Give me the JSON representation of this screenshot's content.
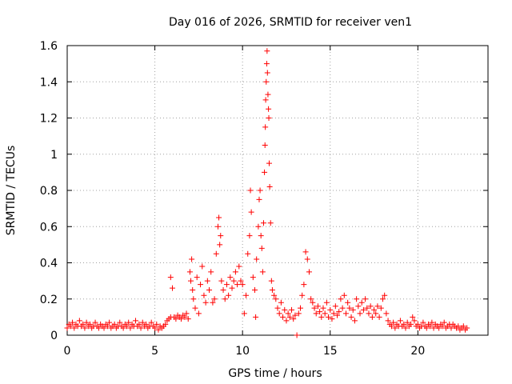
{
  "chart_data": {
    "type": "scatter",
    "title": "Day 016 of 2026, SRMTID for receiver ven1",
    "xlabel": "GPS time / hours",
    "ylabel": "SRMTID / TECUs",
    "xlim": [
      0,
      24
    ],
    "ylim": [
      0,
      1.6
    ],
    "xticks": [
      0,
      5,
      10,
      15,
      20
    ],
    "xtick_labels": [
      "0",
      "5",
      "10",
      "15",
      "20"
    ],
    "yticks": [
      0,
      0.2,
      0.4,
      0.6,
      0.8,
      1.0,
      1.2,
      1.4,
      1.6
    ],
    "ytick_labels": [
      "0",
      "0.2",
      "0.4",
      "0.6",
      "0.8",
      "1",
      "1.2",
      "1.4",
      "1.6"
    ],
    "grid": true,
    "marker": "plus",
    "color": "#ff0000",
    "series": [
      {
        "name": "SRMTID",
        "points": [
          [
            0.0,
            0.04
          ],
          [
            0.1,
            0.06
          ],
          [
            0.2,
            0.05
          ],
          [
            0.3,
            0.07
          ],
          [
            0.4,
            0.04
          ],
          [
            0.5,
            0.06
          ],
          [
            0.6,
            0.05
          ],
          [
            0.7,
            0.08
          ],
          [
            0.8,
            0.05
          ],
          [
            0.9,
            0.06
          ],
          [
            1.0,
            0.04
          ],
          [
            1.1,
            0.07
          ],
          [
            1.2,
            0.05
          ],
          [
            1.3,
            0.06
          ],
          [
            1.4,
            0.04
          ],
          [
            1.5,
            0.05
          ],
          [
            1.6,
            0.07
          ],
          [
            1.7,
            0.05
          ],
          [
            1.8,
            0.04
          ],
          [
            1.9,
            0.06
          ],
          [
            2.0,
            0.05
          ],
          [
            2.1,
            0.04
          ],
          [
            2.2,
            0.06
          ],
          [
            2.3,
            0.05
          ],
          [
            2.4,
            0.07
          ],
          [
            2.5,
            0.04
          ],
          [
            2.6,
            0.05
          ],
          [
            2.7,
            0.06
          ],
          [
            2.8,
            0.04
          ],
          [
            2.9,
            0.05
          ],
          [
            3.0,
            0.07
          ],
          [
            3.1,
            0.05
          ],
          [
            3.2,
            0.04
          ],
          [
            3.3,
            0.06
          ],
          [
            3.4,
            0.05
          ],
          [
            3.5,
            0.07
          ],
          [
            3.6,
            0.04
          ],
          [
            3.7,
            0.06
          ],
          [
            3.8,
            0.05
          ],
          [
            3.9,
            0.08
          ],
          [
            4.0,
            0.05
          ],
          [
            4.1,
            0.06
          ],
          [
            4.2,
            0.04
          ],
          [
            4.3,
            0.07
          ],
          [
            4.4,
            0.05
          ],
          [
            4.5,
            0.06
          ],
          [
            4.6,
            0.04
          ],
          [
            4.7,
            0.05
          ],
          [
            4.8,
            0.07
          ],
          [
            4.9,
            0.05
          ],
          [
            5.0,
            0.04
          ],
          [
            5.1,
            0.06
          ],
          [
            5.2,
            0.03
          ],
          [
            5.3,
            0.05
          ],
          [
            5.4,
            0.04
          ],
          [
            5.5,
            0.05
          ],
          [
            5.6,
            0.06
          ],
          [
            5.7,
            0.08
          ],
          [
            5.8,
            0.09
          ],
          [
            5.9,
            0.1
          ],
          [
            6.0,
            0.26
          ],
          [
            5.9,
            0.32
          ],
          [
            6.1,
            0.1
          ],
          [
            6.2,
            0.09
          ],
          [
            6.3,
            0.11
          ],
          [
            6.4,
            0.1
          ],
          [
            6.5,
            0.09
          ],
          [
            6.6,
            0.11
          ],
          [
            6.7,
            0.1
          ],
          [
            6.8,
            0.12
          ],
          [
            6.9,
            0.09
          ],
          [
            7.0,
            0.35
          ],
          [
            7.05,
            0.3
          ],
          [
            7.1,
            0.42
          ],
          [
            7.15,
            0.25
          ],
          [
            7.2,
            0.2
          ],
          [
            7.3,
            0.15
          ],
          [
            7.4,
            0.32
          ],
          [
            7.5,
            0.12
          ],
          [
            7.6,
            0.28
          ],
          [
            7.7,
            0.38
          ],
          [
            7.8,
            0.22
          ],
          [
            7.9,
            0.18
          ],
          [
            8.0,
            0.3
          ],
          [
            8.1,
            0.25
          ],
          [
            8.2,
            0.35
          ],
          [
            8.3,
            0.18
          ],
          [
            8.4,
            0.2
          ],
          [
            8.5,
            0.45
          ],
          [
            8.6,
            0.6
          ],
          [
            8.65,
            0.65
          ],
          [
            8.7,
            0.5
          ],
          [
            8.75,
            0.55
          ],
          [
            8.8,
            0.3
          ],
          [
            8.9,
            0.25
          ],
          [
            9.0,
            0.2
          ],
          [
            9.1,
            0.28
          ],
          [
            9.2,
            0.22
          ],
          [
            9.3,
            0.32
          ],
          [
            9.4,
            0.26
          ],
          [
            9.5,
            0.3
          ],
          [
            9.6,
            0.35
          ],
          [
            9.7,
            0.28
          ],
          [
            9.8,
            0.38
          ],
          [
            9.9,
            0.3
          ],
          [
            10.0,
            0.28
          ],
          [
            10.1,
            0.12
          ],
          [
            10.2,
            0.22
          ],
          [
            10.3,
            0.45
          ],
          [
            10.4,
            0.55
          ],
          [
            10.45,
            0.8
          ],
          [
            10.5,
            0.68
          ],
          [
            10.6,
            0.32
          ],
          [
            10.7,
            0.25
          ],
          [
            10.75,
            0.1
          ],
          [
            10.8,
            0.42
          ],
          [
            10.9,
            0.6
          ],
          [
            10.95,
            0.75
          ],
          [
            11.0,
            0.8
          ],
          [
            11.05,
            0.55
          ],
          [
            11.1,
            0.48
          ],
          [
            11.15,
            0.35
          ],
          [
            11.2,
            0.62
          ],
          [
            11.25,
            0.9
          ],
          [
            11.28,
            1.05
          ],
          [
            11.3,
            1.15
          ],
          [
            11.32,
            1.3
          ],
          [
            11.35,
            1.4
          ],
          [
            11.38,
            1.5
          ],
          [
            11.4,
            1.57
          ],
          [
            11.42,
            1.45
          ],
          [
            11.45,
            1.33
          ],
          [
            11.48,
            1.25
          ],
          [
            11.5,
            1.2
          ],
          [
            11.52,
            0.95
          ],
          [
            11.55,
            0.82
          ],
          [
            11.6,
            0.62
          ],
          [
            11.65,
            0.3
          ],
          [
            11.7,
            0.25
          ],
          [
            11.8,
            0.22
          ],
          [
            11.9,
            0.2
          ],
          [
            12.0,
            0.15
          ],
          [
            12.1,
            0.12
          ],
          [
            12.2,
            0.18
          ],
          [
            12.3,
            0.1
          ],
          [
            12.4,
            0.14
          ],
          [
            12.5,
            0.08
          ],
          [
            12.6,
            0.12
          ],
          [
            12.7,
            0.1
          ],
          [
            12.8,
            0.14
          ],
          [
            12.9,
            0.09
          ],
          [
            13.0,
            0.11
          ],
          [
            13.1,
            0.0
          ],
          [
            13.2,
            0.12
          ],
          [
            13.3,
            0.15
          ],
          [
            13.4,
            0.22
          ],
          [
            13.5,
            0.28
          ],
          [
            13.6,
            0.46
          ],
          [
            13.7,
            0.42
          ],
          [
            13.8,
            0.35
          ],
          [
            13.9,
            0.2
          ],
          [
            14.0,
            0.18
          ],
          [
            14.1,
            0.15
          ],
          [
            14.2,
            0.12
          ],
          [
            14.3,
            0.16
          ],
          [
            14.4,
            0.13
          ],
          [
            14.5,
            0.1
          ],
          [
            14.6,
            0.15
          ],
          [
            14.7,
            0.12
          ],
          [
            14.8,
            0.18
          ],
          [
            14.9,
            0.1
          ],
          [
            15.0,
            0.14
          ],
          [
            15.1,
            0.09
          ],
          [
            15.2,
            0.12
          ],
          [
            15.3,
            0.16
          ],
          [
            15.4,
            0.11
          ],
          [
            15.5,
            0.13
          ],
          [
            15.6,
            0.2
          ],
          [
            15.7,
            0.15
          ],
          [
            15.8,
            0.22
          ],
          [
            15.9,
            0.12
          ],
          [
            16.0,
            0.18
          ],
          [
            16.1,
            0.15
          ],
          [
            16.2,
            0.1
          ],
          [
            16.3,
            0.14
          ],
          [
            16.4,
            0.08
          ],
          [
            16.5,
            0.2
          ],
          [
            16.6,
            0.16
          ],
          [
            16.7,
            0.12
          ],
          [
            16.8,
            0.18
          ],
          [
            16.9,
            0.14
          ],
          [
            17.0,
            0.2
          ],
          [
            17.1,
            0.15
          ],
          [
            17.2,
            0.12
          ],
          [
            17.3,
            0.16
          ],
          [
            17.4,
            0.1
          ],
          [
            17.5,
            0.14
          ],
          [
            17.6,
            0.12
          ],
          [
            17.7,
            0.16
          ],
          [
            17.8,
            0.1
          ],
          [
            17.9,
            0.15
          ],
          [
            18.0,
            0.2
          ],
          [
            18.1,
            0.22
          ],
          [
            18.2,
            0.12
          ],
          [
            18.3,
            0.08
          ],
          [
            18.4,
            0.06
          ],
          [
            18.5,
            0.05
          ],
          [
            18.6,
            0.07
          ],
          [
            18.7,
            0.04
          ],
          [
            18.8,
            0.06
          ],
          [
            18.9,
            0.05
          ],
          [
            19.0,
            0.08
          ],
          [
            19.1,
            0.05
          ],
          [
            19.2,
            0.06
          ],
          [
            19.3,
            0.04
          ],
          [
            19.4,
            0.07
          ],
          [
            19.5,
            0.05
          ],
          [
            19.6,
            0.06
          ],
          [
            19.7,
            0.1
          ],
          [
            19.8,
            0.08
          ],
          [
            19.9,
            0.05
          ],
          [
            20.0,
            0.06
          ],
          [
            20.1,
            0.04
          ],
          [
            20.2,
            0.05
          ],
          [
            20.3,
            0.07
          ],
          [
            20.4,
            0.05
          ],
          [
            20.5,
            0.04
          ],
          [
            20.6,
            0.06
          ],
          [
            20.7,
            0.05
          ],
          [
            20.8,
            0.07
          ],
          [
            20.9,
            0.04
          ],
          [
            21.0,
            0.06
          ],
          [
            21.1,
            0.05
          ],
          [
            21.2,
            0.04
          ],
          [
            21.3,
            0.06
          ],
          [
            21.4,
            0.05
          ],
          [
            21.5,
            0.07
          ],
          [
            21.6,
            0.04
          ],
          [
            21.7,
            0.05
          ],
          [
            21.8,
            0.06
          ],
          [
            21.9,
            0.04
          ],
          [
            22.0,
            0.06
          ],
          [
            22.1,
            0.05
          ],
          [
            22.2,
            0.04
          ],
          [
            22.3,
            0.05
          ],
          [
            22.4,
            0.03
          ],
          [
            22.5,
            0.04
          ],
          [
            22.6,
            0.05
          ],
          [
            22.7,
            0.03
          ],
          [
            22.8,
            0.04
          ]
        ]
      }
    ]
  }
}
